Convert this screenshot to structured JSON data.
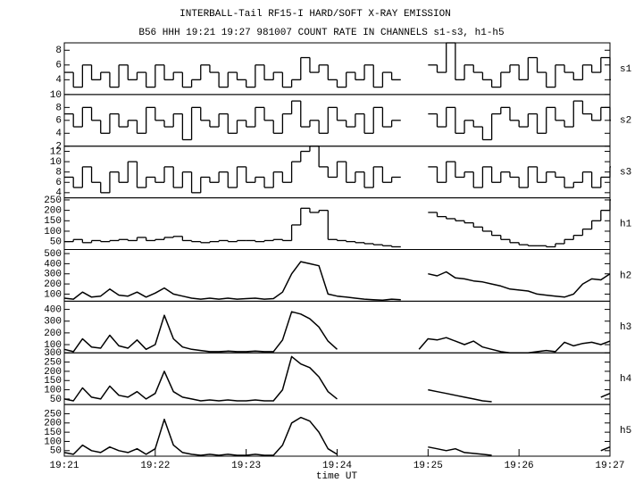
{
  "chart_data": [
    {
      "type": "line",
      "drawstyle": "steps-post",
      "title": "INTERBALL-Tail RF15-I HARD/SOFT X-RAY EMISSION",
      "subtitle": "B56 HHH 19:21 19:27 981007  COUNT RATE IN CHANNELS s1-s3, h1-h5",
      "label": "s1",
      "color": "#000000",
      "x": [
        0,
        0.1,
        0.2,
        0.3,
        0.4,
        0.5,
        0.6,
        0.7,
        0.8,
        0.9,
        1,
        1.1,
        1.2,
        1.3,
        1.4,
        1.5,
        1.6,
        1.7,
        1.8,
        1.9,
        2,
        2.1,
        2.2,
        2.3,
        2.4,
        2.5,
        2.6,
        2.7,
        2.8,
        2.9,
        3,
        3.1,
        3.2,
        3.3,
        3.4,
        3.5,
        3.6,
        3.7,
        3.8,
        3.9,
        4,
        4.1,
        4.2,
        4.3,
        4.4,
        4.5,
        4.6,
        4.7,
        4.8,
        4.9,
        5,
        5.1,
        5.2,
        5.3,
        5.4,
        5.5,
        5.6,
        5.7,
        5.8,
        5.9,
        6
      ],
      "values": [
        5,
        3,
        6,
        4,
        5,
        3,
        6,
        4,
        5,
        3,
        6,
        4,
        5,
        3,
        4,
        6,
        5,
        3,
        5,
        4,
        3,
        6,
        4,
        5,
        3,
        4,
        7,
        5,
        6,
        4,
        3,
        5,
        4,
        6,
        3,
        5,
        4,
        null,
        null,
        null,
        6,
        5,
        9,
        4,
        6,
        5,
        4,
        3,
        5,
        6,
        4,
        7,
        5,
        3,
        6,
        5,
        4,
        6,
        5,
        7,
        4
      ],
      "xlim": [
        0,
        6
      ],
      "ylim": [
        2,
        9
      ],
      "yticks": [
        4,
        6,
        8
      ]
    },
    {
      "type": "line",
      "drawstyle": "steps-post",
      "label": "s2",
      "color": "#000000",
      "x": [
        0,
        0.1,
        0.2,
        0.3,
        0.4,
        0.5,
        0.6,
        0.7,
        0.8,
        0.9,
        1,
        1.1,
        1.2,
        1.3,
        1.4,
        1.5,
        1.6,
        1.7,
        1.8,
        1.9,
        2,
        2.1,
        2.2,
        2.3,
        2.4,
        2.5,
        2.6,
        2.7,
        2.8,
        2.9,
        3,
        3.1,
        3.2,
        3.3,
        3.4,
        3.5,
        3.6,
        3.7,
        3.8,
        3.9,
        4,
        4.1,
        4.2,
        4.3,
        4.4,
        4.5,
        4.6,
        4.7,
        4.8,
        4.9,
        5,
        5.1,
        5.2,
        5.3,
        5.4,
        5.5,
        5.6,
        5.7,
        5.8,
        5.9,
        6
      ],
      "values": [
        7,
        5,
        8,
        6,
        4,
        7,
        5,
        6,
        4,
        8,
        6,
        5,
        7,
        3,
        8,
        6,
        5,
        7,
        4,
        6,
        5,
        8,
        6,
        4,
        7,
        9,
        5,
        6,
        4,
        8,
        6,
        5,
        7,
        4,
        8,
        5,
        6,
        null,
        null,
        null,
        7,
        5,
        8,
        4,
        6,
        5,
        3,
        7,
        8,
        6,
        5,
        7,
        4,
        8,
        6,
        5,
        9,
        7,
        6,
        8,
        6
      ],
      "xlim": [
        0,
        6
      ],
      "ylim": [
        2,
        10
      ],
      "yticks": [
        2,
        4,
        6,
        8,
        10
      ]
    },
    {
      "type": "line",
      "drawstyle": "steps-post",
      "label": "s3",
      "color": "#000000",
      "x": [
        0,
        0.1,
        0.2,
        0.3,
        0.4,
        0.5,
        0.6,
        0.7,
        0.8,
        0.9,
        1,
        1.1,
        1.2,
        1.3,
        1.4,
        1.5,
        1.6,
        1.7,
        1.8,
        1.9,
        2,
        2.1,
        2.2,
        2.3,
        2.4,
        2.5,
        2.6,
        2.7,
        2.8,
        2.9,
        3,
        3.1,
        3.2,
        3.3,
        3.4,
        3.5,
        3.6,
        3.7,
        3.8,
        3.9,
        4,
        4.1,
        4.2,
        4.3,
        4.4,
        4.5,
        4.6,
        4.7,
        4.8,
        4.9,
        5,
        5.1,
        5.2,
        5.3,
        5.4,
        5.5,
        5.6,
        5.7,
        5.8,
        5.9,
        6
      ],
      "values": [
        7,
        5,
        9,
        6,
        4,
        8,
        6,
        10,
        5,
        7,
        6,
        9,
        5,
        8,
        4,
        7,
        6,
        8,
        5,
        9,
        6,
        7,
        5,
        8,
        6,
        10,
        12,
        13,
        9,
        7,
        10,
        6,
        8,
        5,
        9,
        6,
        7,
        null,
        null,
        null,
        9,
        6,
        10,
        7,
        8,
        5,
        9,
        6,
        8,
        7,
        5,
        9,
        6,
        8,
        7,
        5,
        6,
        8,
        5,
        7,
        9
      ],
      "xlim": [
        0,
        6
      ],
      "ylim": [
        3,
        13
      ],
      "yticks": [
        4,
        6,
        8,
        10,
        12
      ]
    },
    {
      "type": "line",
      "drawstyle": "steps-post",
      "label": "h1",
      "color": "#000000",
      "x": [
        0,
        0.1,
        0.2,
        0.3,
        0.4,
        0.5,
        0.6,
        0.7,
        0.8,
        0.9,
        1,
        1.1,
        1.2,
        1.3,
        1.4,
        1.5,
        1.6,
        1.7,
        1.8,
        1.9,
        2,
        2.1,
        2.2,
        2.3,
        2.4,
        2.5,
        2.6,
        2.7,
        2.8,
        2.9,
        3,
        3.1,
        3.2,
        3.3,
        3.4,
        3.5,
        3.6,
        3.7,
        3.8,
        3.9,
        4,
        4.1,
        4.2,
        4.3,
        4.4,
        4.5,
        4.6,
        4.7,
        4.8,
        4.9,
        5,
        5.1,
        5.2,
        5.3,
        5.4,
        5.5,
        5.6,
        5.7,
        5.8,
        5.9,
        6
      ],
      "values": [
        50,
        60,
        45,
        55,
        50,
        55,
        60,
        55,
        70,
        55,
        60,
        70,
        75,
        55,
        50,
        45,
        50,
        55,
        50,
        55,
        55,
        50,
        55,
        60,
        55,
        130,
        210,
        190,
        200,
        60,
        55,
        50,
        45,
        40,
        35,
        30,
        25,
        null,
        null,
        null,
        190,
        170,
        160,
        150,
        140,
        120,
        100,
        80,
        60,
        45,
        35,
        30,
        30,
        25,
        40,
        60,
        80,
        110,
        150,
        200,
        250
      ],
      "xlim": [
        0,
        6
      ],
      "ylim": [
        12,
        260
      ],
      "yticks": [
        50,
        100,
        150,
        200,
        250
      ]
    },
    {
      "type": "line",
      "label": "h2",
      "color": "#000000",
      "x": [
        0,
        0.1,
        0.2,
        0.3,
        0.4,
        0.5,
        0.6,
        0.7,
        0.8,
        0.9,
        1,
        1.1,
        1.2,
        1.3,
        1.4,
        1.5,
        1.6,
        1.7,
        1.8,
        1.9,
        2,
        2.1,
        2.2,
        2.3,
        2.4,
        2.5,
        2.6,
        2.7,
        2.8,
        2.9,
        3,
        3.1,
        3.2,
        3.3,
        3.4,
        3.5,
        3.6,
        3.7,
        3.8,
        3.9,
        4,
        4.1,
        4.2,
        4.3,
        4.4,
        4.5,
        4.6,
        4.7,
        4.8,
        4.9,
        5,
        5.1,
        5.2,
        5.3,
        5.4,
        5.5,
        5.6,
        5.7,
        5.8,
        5.9,
        6
      ],
      "values": [
        60,
        50,
        120,
        70,
        80,
        150,
        90,
        80,
        120,
        70,
        110,
        160,
        100,
        80,
        60,
        50,
        60,
        50,
        60,
        50,
        55,
        60,
        50,
        55,
        120,
        300,
        420,
        400,
        380,
        100,
        80,
        70,
        60,
        50,
        45,
        40,
        50,
        45,
        null,
        null,
        300,
        280,
        320,
        260,
        250,
        230,
        220,
        200,
        180,
        150,
        140,
        130,
        100,
        90,
        80,
        70,
        100,
        200,
        250,
        240,
        300
      ],
      "xlim": [
        0,
        6
      ],
      "ylim": [
        30,
        540
      ],
      "yticks": [
        100,
        200,
        300,
        400,
        500
      ]
    },
    {
      "type": "line",
      "label": "h3",
      "color": "#000000",
      "x": [
        0,
        0.1,
        0.2,
        0.3,
        0.4,
        0.5,
        0.6,
        0.7,
        0.8,
        0.9,
        1,
        1.1,
        1.2,
        1.3,
        1.4,
        1.5,
        1.6,
        1.7,
        1.8,
        1.9,
        2,
        2.1,
        2.2,
        2.3,
        2.4,
        2.5,
        2.6,
        2.7,
        2.8,
        2.9,
        3,
        3.1,
        3.2,
        3.3,
        3.4,
        3.5,
        3.6,
        3.7,
        3.8,
        3.9,
        4,
        4.1,
        4.2,
        4.3,
        4.4,
        4.5,
        4.6,
        4.7,
        4.8,
        4.9,
        5,
        5.1,
        5.2,
        5.3,
        5.4,
        5.5,
        5.6,
        5.7,
        5.8,
        5.9,
        6
      ],
      "values": [
        60,
        40,
        150,
        80,
        70,
        180,
        90,
        70,
        140,
        60,
        100,
        350,
        150,
        80,
        60,
        50,
        40,
        40,
        45,
        40,
        40,
        45,
        40,
        40,
        140,
        380,
        360,
        320,
        250,
        130,
        60,
        null,
        null,
        null,
        null,
        null,
        null,
        null,
        null,
        60,
        150,
        140,
        160,
        130,
        100,
        130,
        80,
        60,
        40,
        30,
        30,
        30,
        40,
        50,
        40,
        120,
        90,
        110,
        120,
        100,
        130
      ],
      "xlim": [
        0,
        6
      ],
      "ylim": [
        30,
        470
      ],
      "yticks": [
        100,
        200,
        300,
        400
      ]
    },
    {
      "type": "line",
      "label": "h4",
      "color": "#000000",
      "x": [
        0,
        0.1,
        0.2,
        0.3,
        0.4,
        0.5,
        0.6,
        0.7,
        0.8,
        0.9,
        1,
        1.1,
        1.2,
        1.3,
        1.4,
        1.5,
        1.6,
        1.7,
        1.8,
        1.9,
        2,
        2.1,
        2.2,
        2.3,
        2.4,
        2.5,
        2.6,
        2.7,
        2.8,
        2.9,
        3,
        3.1,
        3.2,
        3.3,
        3.4,
        3.5,
        3.6,
        3.7,
        3.8,
        3.9,
        4,
        4.1,
        4.2,
        4.3,
        4.4,
        4.5,
        4.6,
        4.7,
        4.8,
        4.9,
        5,
        5.1,
        5.2,
        5.3,
        5.4,
        5.5,
        5.6,
        5.7,
        5.8,
        5.9,
        6
      ],
      "values": [
        50,
        40,
        110,
        60,
        50,
        120,
        70,
        60,
        90,
        50,
        80,
        200,
        90,
        60,
        50,
        40,
        45,
        40,
        45,
        40,
        40,
        45,
        40,
        40,
        100,
        280,
        240,
        220,
        170,
        90,
        50,
        null,
        null,
        null,
        null,
        null,
        null,
        null,
        null,
        null,
        100,
        90,
        80,
        70,
        60,
        50,
        40,
        35,
        null,
        null,
        null,
        null,
        null,
        null,
        null,
        null,
        null,
        null,
        null,
        60,
        80
      ],
      "xlim": [
        0,
        6
      ],
      "ylim": [
        20,
        300
      ],
      "yticks": [
        50,
        100,
        150,
        200,
        250,
        300
      ]
    },
    {
      "type": "line",
      "label": "h5",
      "color": "#000000",
      "xlabel": "time UT",
      "x": [
        0,
        0.1,
        0.2,
        0.3,
        0.4,
        0.5,
        0.6,
        0.7,
        0.8,
        0.9,
        1,
        1.1,
        1.2,
        1.3,
        1.4,
        1.5,
        1.6,
        1.7,
        1.8,
        1.9,
        2,
        2.1,
        2.2,
        2.3,
        2.4,
        2.5,
        2.6,
        2.7,
        2.8,
        2.9,
        3,
        3.1,
        3.2,
        3.3,
        3.4,
        3.5,
        3.6,
        3.7,
        3.8,
        3.9,
        4,
        4.1,
        4.2,
        4.3,
        4.4,
        4.5,
        4.6,
        4.7,
        4.8,
        4.9,
        5,
        5.1,
        5.2,
        5.3,
        5.4,
        5.5,
        5.6,
        5.7,
        5.8,
        5.9,
        6
      ],
      "values": [
        40,
        30,
        80,
        50,
        40,
        70,
        50,
        40,
        60,
        30,
        60,
        220,
        80,
        40,
        30,
        25,
        30,
        25,
        30,
        25,
        25,
        30,
        25,
        25,
        80,
        200,
        230,
        210,
        150,
        60,
        30,
        null,
        null,
        null,
        null,
        null,
        null,
        null,
        null,
        null,
        70,
        60,
        50,
        60,
        40,
        35,
        30,
        25,
        null,
        null,
        null,
        null,
        null,
        null,
        null,
        null,
        null,
        null,
        null,
        50,
        70
      ],
      "xlim": [
        0,
        6
      ],
      "ylim": [
        20,
        300
      ],
      "yticks": [
        50,
        100,
        150,
        200,
        250
      ],
      "xticks": [
        {
          "value": 0,
          "label": "19:21"
        },
        {
          "value": 1,
          "label": "19:22"
        },
        {
          "value": 2,
          "label": "19:23"
        },
        {
          "value": 3,
          "label": "19:24"
        },
        {
          "value": 4,
          "label": "19:25"
        },
        {
          "value": 5,
          "label": "19:26"
        },
        {
          "value": 6,
          "label": "19:27"
        }
      ]
    }
  ]
}
